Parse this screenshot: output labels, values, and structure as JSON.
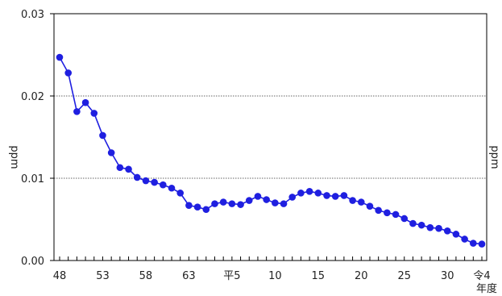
{
  "chart_data": {
    "type": "line",
    "title": "",
    "xlabel": "年度",
    "ylabel": "ppm",
    "ylabel_right": "ppm",
    "ylim": [
      0,
      0.03
    ],
    "y_ticks": [
      "0.00",
      "0.01",
      "0.02",
      "0.03"
    ],
    "y_tick_values": [
      0,
      0.01,
      0.02,
      0.03
    ],
    "x_tick_labels": [
      "48",
      "53",
      "58",
      "63",
      "平5",
      "10",
      "15",
      "20",
      "25",
      "30",
      "令4"
    ],
    "x_tick_indices": [
      0,
      5,
      10,
      15,
      20,
      25,
      30,
      35,
      40,
      45,
      49
    ],
    "grid": "dotted lines at 0.01 and 0.02",
    "line_color": "#1f1fe0",
    "series": [
      {
        "values": [
          0.0247,
          0.0228,
          0.0181,
          0.0192,
          0.0179,
          0.0152,
          0.0131,
          0.0113,
          0.0111,
          0.0101,
          0.0097,
          0.0095,
          0.0092,
          0.0088,
          0.0082,
          0.0067,
          0.0065,
          0.0062,
          0.0069,
          0.0071,
          0.0069,
          0.0068,
          0.0073,
          0.0078,
          0.0074,
          0.007,
          0.0069,
          0.0077,
          0.0082,
          0.0084,
          0.0082,
          0.0079,
          0.0078,
          0.0079,
          0.0073,
          0.0071,
          0.0066,
          0.0061,
          0.0058,
          0.0056,
          0.0051,
          0.0045,
          0.0043,
          0.004,
          0.0039,
          0.0036,
          0.0032,
          0.0026,
          0.0021,
          0.002
        ]
      }
    ]
  }
}
